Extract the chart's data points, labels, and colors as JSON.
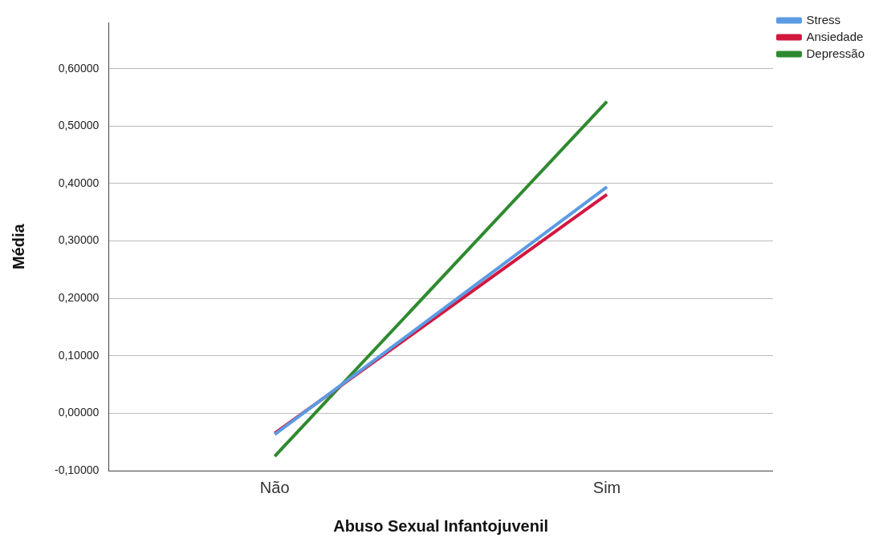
{
  "chart_data": {
    "type": "line",
    "xlabel": "Abuso Sexual Infantojuvenil",
    "ylabel": "Média",
    "categories": [
      "Não",
      "Sim"
    ],
    "series": [
      {
        "name": "Stress",
        "color": "#5b9be3",
        "values": [
          -0.037,
          0.394
        ]
      },
      {
        "name": "Ansiedade",
        "color": "#d2183f",
        "values": [
          -0.035,
          0.381
        ]
      },
      {
        "name": "Depressão",
        "color": "#2f8a2f",
        "values": [
          -0.075,
          0.543
        ]
      }
    ],
    "ylim": [
      -0.1,
      0.68
    ],
    "yticks": [
      {
        "value": -0.1,
        "label": "-0,10000"
      },
      {
        "value": 0,
        "label": "0,00000"
      },
      {
        "value": 0.1,
        "label": "0,10000"
      },
      {
        "value": 0.2,
        "label": "0,20000"
      },
      {
        "value": 0.3,
        "label": "0,30000"
      },
      {
        "value": 0.4,
        "label": "0,40000"
      },
      {
        "value": 0.5,
        "label": "0,50000"
      },
      {
        "value": 0.6,
        "label": "0,60000"
      }
    ],
    "grid": "y",
    "legend": "top right",
    "marker": "none",
    "line_style": "solid"
  }
}
